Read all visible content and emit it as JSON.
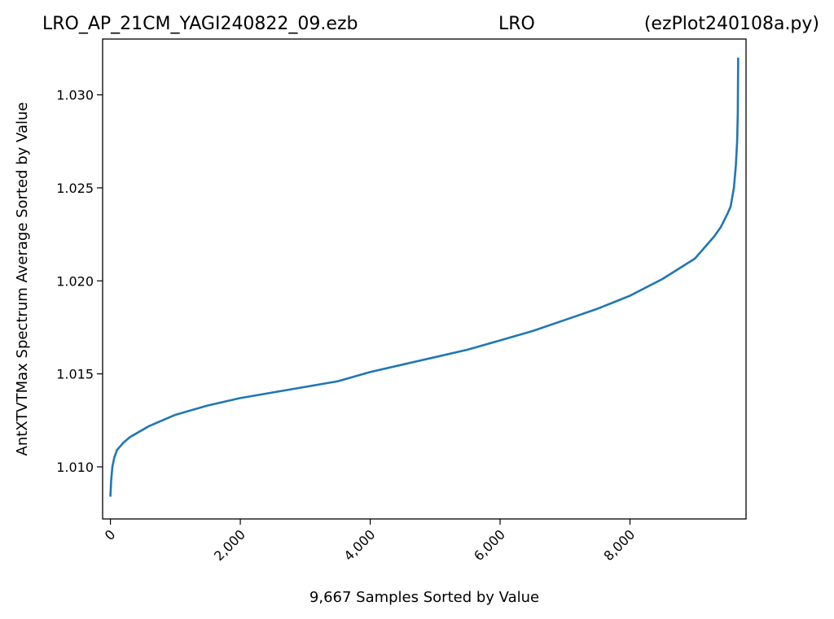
{
  "chart_data": {
    "type": "line",
    "title_parts": {
      "left": "LRO_AP_21CM_YAGI240822_09.ezb",
      "center": "LRO",
      "right": "(ezPlot240108a.py)"
    },
    "xlabel": "9,667 Samples Sorted by Value",
    "ylabel": "AntXTVTMax Spectrum Average Sorted by Value",
    "xlim": [
      -120,
      9787
    ],
    "ylim": [
      1.0072,
      1.033
    ],
    "x_ticks": [
      0,
      2000,
      4000,
      6000,
      8000
    ],
    "x_tick_labels": [
      "0",
      "2,000",
      "4,000",
      "6,000",
      "8,000"
    ],
    "y_ticks": [
      1.01,
      1.015,
      1.02,
      1.025,
      1.03
    ],
    "y_tick_labels": [
      "1.010",
      "1.015",
      "1.020",
      "1.025",
      "1.030"
    ],
    "grid": false,
    "color": "#1f77b4",
    "series": [
      {
        "x": [
          0,
          10,
          30,
          60,
          100,
          150,
          200,
          300,
          400,
          600,
          800,
          1000,
          1500,
          2000,
          2500,
          3000,
          3500,
          4000,
          4500,
          5000,
          5500,
          6000,
          6500,
          7000,
          7500,
          8000,
          8500,
          9000,
          9300,
          9400,
          9500,
          9550,
          9600,
          9630,
          9650,
          9660,
          9666
        ],
        "y": [
          1.0084,
          1.0092,
          1.01,
          1.0105,
          1.0109,
          1.0111,
          1.0113,
          1.0116,
          1.0118,
          1.0122,
          1.0125,
          1.0128,
          1.0133,
          1.0137,
          1.014,
          1.0143,
          1.0146,
          1.0151,
          1.0155,
          1.0159,
          1.0163,
          1.0168,
          1.0173,
          1.0179,
          1.0185,
          1.0192,
          1.0201,
          1.0212,
          1.0224,
          1.0229,
          1.0236,
          1.024,
          1.025,
          1.0262,
          1.0275,
          1.029,
          1.032
        ]
      }
    ]
  }
}
